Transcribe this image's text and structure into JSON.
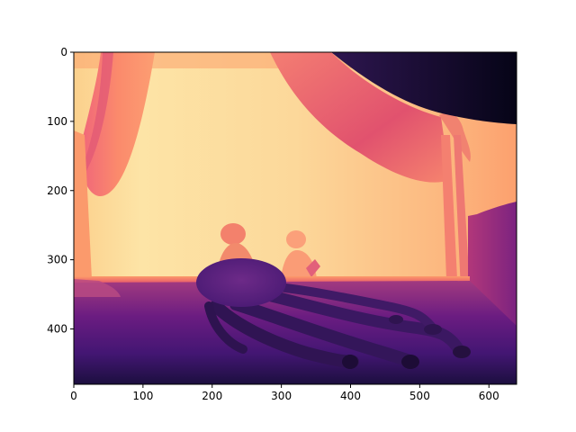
{
  "chart_data": {
    "type": "heatmap",
    "title": "",
    "xlabel": "",
    "ylabel": "",
    "colormap": "magma",
    "image_size": [
      640,
      480
    ],
    "xlim": [
      0,
      640
    ],
    "ylim": [
      480,
      0
    ],
    "x_ticks": [
      0,
      100,
      200,
      300,
      400,
      500,
      600
    ],
    "y_ticks": [
      0,
      100,
      200,
      300,
      400
    ],
    "x_tick_labels": [
      "0",
      "100",
      "200",
      "300",
      "400",
      "500",
      "600"
    ],
    "y_tick_labels": [
      "0",
      "100",
      "200",
      "300",
      "400"
    ],
    "grid": false,
    "content": "depth map of a stage scene with draped curtains, two small figures and an octopus-like object in the foreground"
  }
}
